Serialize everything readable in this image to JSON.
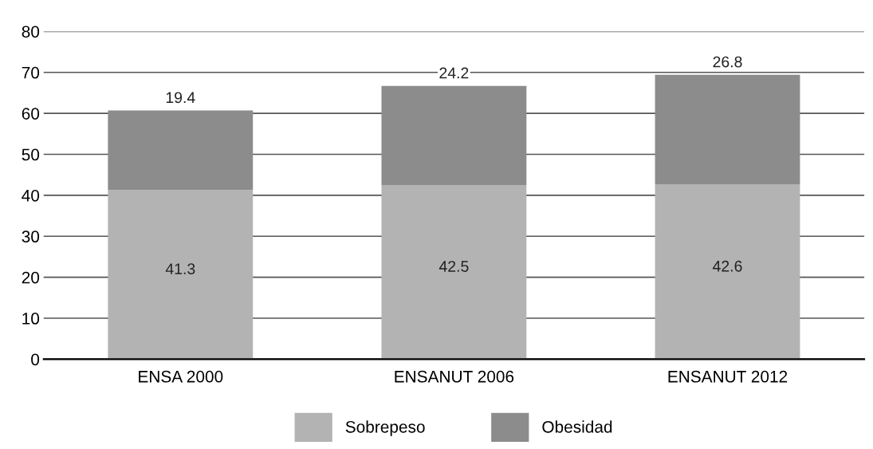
{
  "chart_data": {
    "type": "bar",
    "stacked": true,
    "categories": [
      "ENSA 2000",
      "ENSANUT 2006",
      "ENSANUT 2012"
    ],
    "series": [
      {
        "name": "Sobrepeso",
        "color": "#b3b3b3",
        "values": [
          41.3,
          42.5,
          42.6
        ]
      },
      {
        "name": "Obesidad",
        "color": "#8c8c8c",
        "values": [
          19.4,
          24.2,
          26.8
        ]
      }
    ],
    "ylim": [
      0,
      80
    ],
    "yticks": [
      0,
      10,
      20,
      30,
      40,
      50,
      60,
      70,
      80
    ],
    "grid": "y",
    "legend": "bottom",
    "data_labels": true
  }
}
